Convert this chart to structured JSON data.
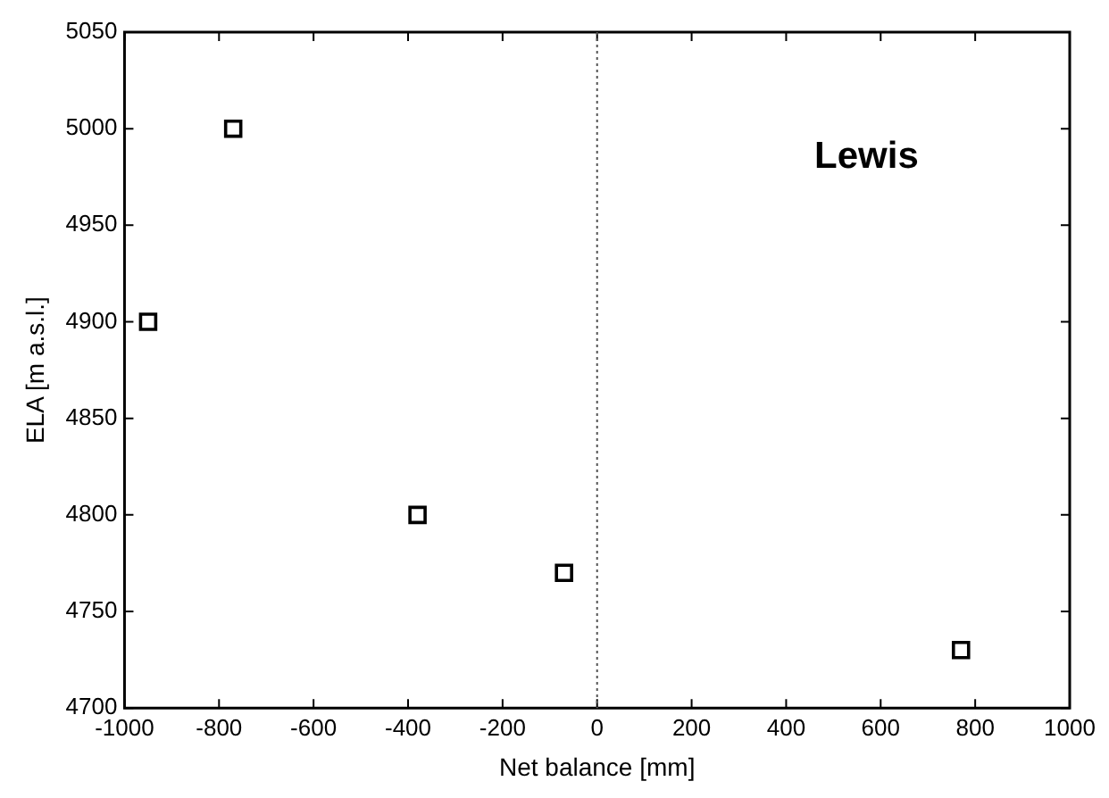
{
  "chart_data": {
    "type": "scatter",
    "xlabel": "Net balance [mm]",
    "ylabel": "ELA [m a.s.l.]",
    "annotations": [
      "Lewis"
    ],
    "x": [
      -950,
      -770,
      -380,
      -70,
      770
    ],
    "series": [
      {
        "color": "#000000",
        "values": [
          4900,
          5000,
          4800,
          4770,
          4730
        ]
      }
    ],
    "marker": "square",
    "grid": false,
    "legend": false,
    "xlim": [
      -1000,
      1000
    ],
    "xticks": [
      -1000,
      -800,
      -600,
      -400,
      -200,
      0,
      200,
      400,
      600,
      800,
      1000
    ],
    "ylim": [
      4700,
      5050
    ],
    "yticks": [
      4700,
      4750,
      4800,
      4850,
      4900,
      4950,
      5000,
      5050
    ],
    "ref_lines": [
      {
        "axis": "x",
        "value": 0,
        "line_style": "dotted",
        "color": "#555555"
      }
    ]
  }
}
